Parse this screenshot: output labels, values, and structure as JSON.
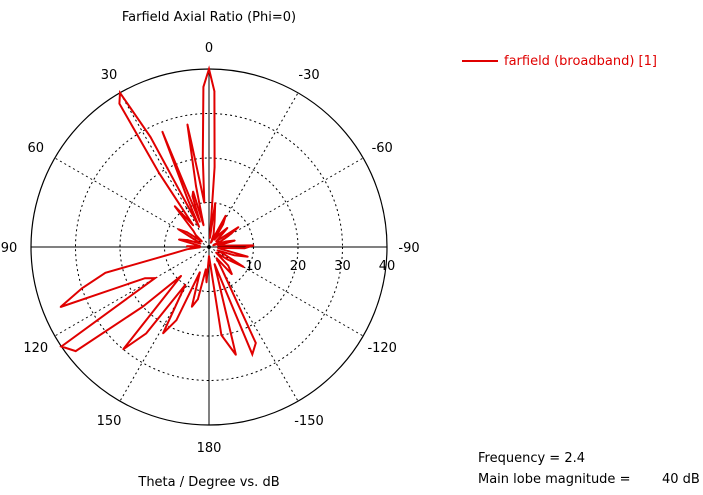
{
  "chart_data": {
    "type": "polar_line",
    "title": "Farfield  Axial Ratio (Phi=0)",
    "xlabel": "Theta / Degree vs. dB",
    "radial_ticks": [
      "10",
      "20",
      "30",
      "40"
    ],
    "radial_max": 40,
    "angle_labels": [
      {
        "angle": 0,
        "label": "0"
      },
      {
        "angle": 30,
        "label": "30"
      },
      {
        "angle": 60,
        "label": "60"
      },
      {
        "angle": 90,
        "label": "90"
      },
      {
        "angle": 120,
        "label": "120"
      },
      {
        "angle": 150,
        "label": "150"
      },
      {
        "angle": 180,
        "label": "180"
      },
      {
        "angle": -30,
        "label": "-30"
      },
      {
        "angle": -60,
        "label": "-60"
      },
      {
        "angle": -90,
        "label": "-90"
      },
      {
        "angle": -120,
        "label": "-120"
      },
      {
        "angle": -150,
        "label": "-150"
      }
    ],
    "grid": true,
    "legend_position": "top-right",
    "series": [
      {
        "name": "farfield (broadband) [1]",
        "color": "#e00000",
        "theta_deg": [
          -180,
          -172,
          -166,
          -162,
          -158,
          -154,
          -150,
          -146,
          -140,
          -134,
          -128,
          -124,
          -120,
          -116,
          -112,
          -108,
          -104,
          -100,
          -96,
          -92,
          -88,
          -84,
          -80,
          -76,
          -72,
          -68,
          -64,
          -60,
          -56,
          -52,
          -48,
          -44,
          -40,
          -36,
          -32,
          -28,
          -24,
          -20,
          -16,
          -12,
          -8,
          -6,
          -4,
          -2,
          0,
          2,
          4,
          6,
          8,
          10,
          12,
          14,
          16,
          18,
          20,
          22,
          24,
          26,
          28,
          30,
          32,
          34,
          36,
          40,
          44,
          48,
          52,
          56,
          60,
          64,
          68,
          72,
          76,
          80,
          84,
          88,
          90,
          92,
          96,
          100,
          104,
          108,
          112,
          116,
          120,
          124,
          128,
          132,
          136,
          140,
          144,
          148,
          152,
          156,
          160,
          164,
          168,
          172,
          176,
          180
        ],
        "db": [
          2,
          20,
          25,
          4,
          26,
          24,
          6,
          3,
          8,
          6,
          2,
          5,
          9,
          4,
          2,
          6,
          9,
          3,
          2,
          8,
          10,
          3,
          2,
          6,
          4,
          1,
          3,
          5,
          8,
          2,
          3,
          6,
          4,
          2,
          6,
          8,
          1,
          3,
          4,
          6,
          10,
          2,
          18,
          35,
          40,
          36,
          20,
          10,
          15,
          28,
          14,
          5,
          13,
          12,
          6,
          28,
          12,
          5,
          28,
          40,
          38,
          20,
          6,
          12,
          5,
          4,
          2,
          6,
          8,
          3,
          2,
          5,
          7,
          3,
          2,
          5,
          4,
          2,
          5,
          8,
          24,
          30,
          36,
          16,
          14,
          40,
          38,
          20,
          9,
          30,
          24,
          10,
          22,
          18,
          6,
          14,
          12,
          5,
          8,
          2
        ]
      }
    ]
  },
  "legend": {
    "label": "farfield (broadband) [1]"
  },
  "info": {
    "frequency": "Frequency = 2.4",
    "main_lobe_label": "Main lobe magnitude =",
    "main_lobe_value": "40 dB"
  }
}
